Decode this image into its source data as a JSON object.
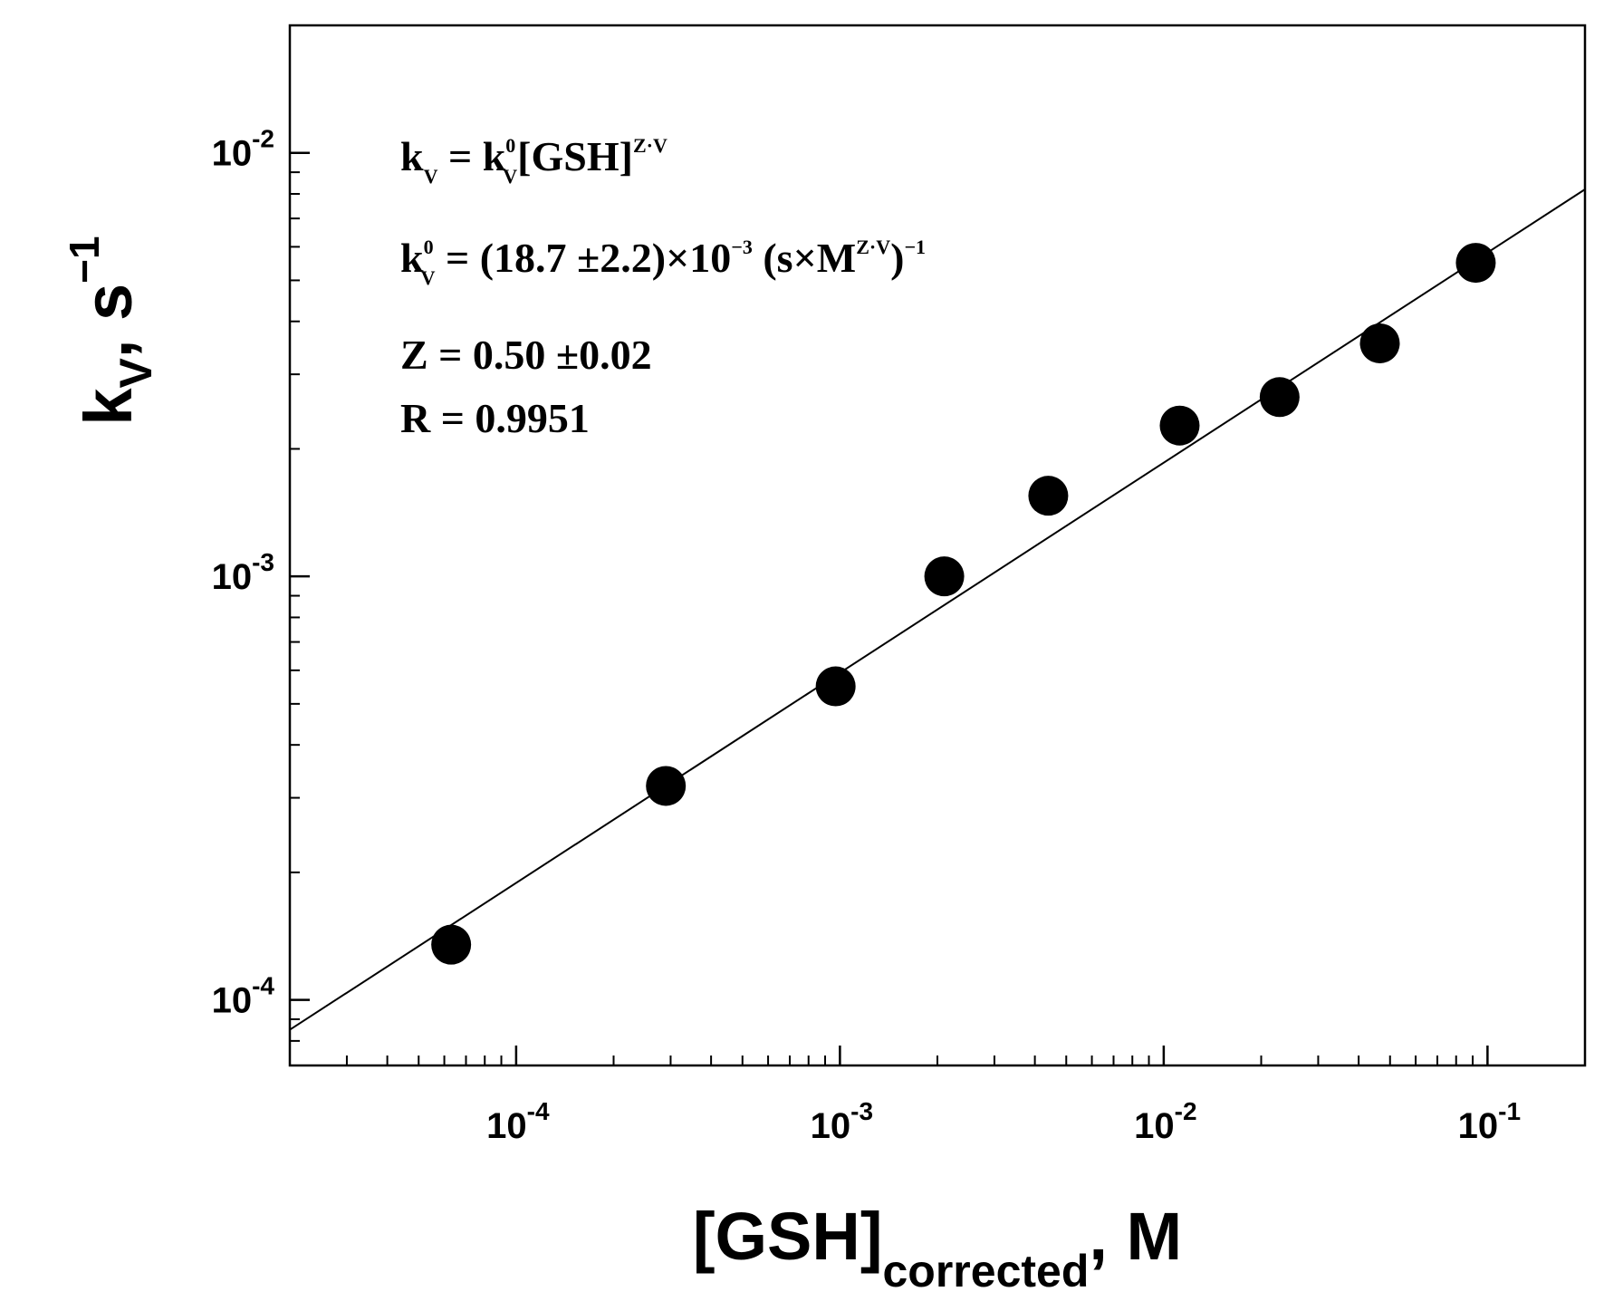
{
  "chart_data": {
    "type": "scatter",
    "xscale": "log",
    "yscale": "log",
    "xlim": [
      2e-05,
      0.2
    ],
    "ylim": [
      7e-05,
      0.02
    ],
    "grid": false,
    "xlabel": {
      "main": "[GSH]",
      "sub": "corrected",
      "tail": ", M"
    },
    "ylabel": {
      "main": "k",
      "sub": "V",
      "tail": ", s",
      "sup": "−1"
    },
    "xticks": [
      {
        "value": 0.0001,
        "base": "10",
        "exp": "-4"
      },
      {
        "value": 0.001,
        "base": "10",
        "exp": "-3"
      },
      {
        "value": 0.01,
        "base": "10",
        "exp": "-2"
      },
      {
        "value": 0.1,
        "base": "10",
        "exp": "-1"
      }
    ],
    "yticks": [
      {
        "value": 0.0001,
        "base": "10",
        "exp": "-4"
      },
      {
        "value": 0.001,
        "base": "10",
        "exp": "-3"
      },
      {
        "value": 0.01,
        "base": "10",
        "exp": "-2"
      }
    ],
    "series": [
      {
        "marker": "filled-circle",
        "color": "#000000",
        "points": [
          {
            "x": 6.3e-05,
            "y": 0.000135
          },
          {
            "x": 0.00029,
            "y": 0.00032
          },
          {
            "x": 0.00097,
            "y": 0.00055
          },
          {
            "x": 0.0021,
            "y": 0.001
          },
          {
            "x": 0.0044,
            "y": 0.00155
          },
          {
            "x": 0.0112,
            "y": 0.00227
          },
          {
            "x": 0.0228,
            "y": 0.00265
          },
          {
            "x": 0.0465,
            "y": 0.00355
          },
          {
            "x": 0.092,
            "y": 0.0055
          }
        ]
      }
    ],
    "fit": {
      "type": "power-law",
      "color": "#000000",
      "points": [
        {
          "x": 2e-05,
          "y": 8.5e-05
        },
        {
          "x": 0.2,
          "y": 0.0082
        }
      ]
    },
    "annotations": [
      {
        "id": "eq1",
        "parts": [
          {
            "t": "k"
          },
          {
            "t": "V",
            "r": "sub"
          },
          {
            "t": " = k"
          },
          {
            "t": "0",
            "r": "sup"
          },
          {
            "t": "V",
            "r": "sub2"
          },
          {
            "t": "[GSH]"
          },
          {
            "t": "Z·V",
            "r": "sup"
          }
        ]
      },
      {
        "id": "eq2",
        "parts": [
          {
            "t": "k"
          },
          {
            "t": "0",
            "r": "sup"
          },
          {
            "t": "V",
            "r": "sub2"
          },
          {
            "t": " = (18.7 ±2.2)×10"
          },
          {
            "t": "−3",
            "r": "sup"
          },
          {
            "t": " (s×M"
          },
          {
            "t": "Z·V",
            "r": "sup"
          },
          {
            "t": ")"
          },
          {
            "t": "−1",
            "r": "sup"
          }
        ]
      },
      {
        "id": "eq3",
        "parts": [
          {
            "t": "Z = 0.50 ±0.02"
          }
        ]
      },
      {
        "id": "eq4",
        "parts": [
          {
            "t": "R = 0.9951"
          }
        ]
      }
    ]
  }
}
